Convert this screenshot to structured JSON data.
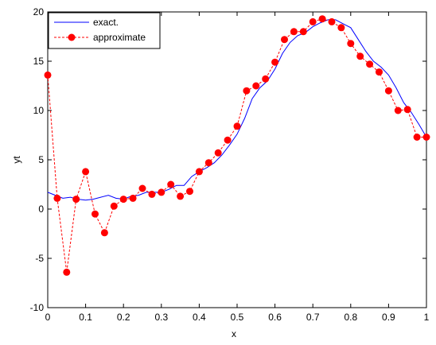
{
  "chart_data": {
    "type": "line",
    "xlabel": "x",
    "ylabel": "yt",
    "xlim": [
      0,
      1
    ],
    "ylim": [
      -10,
      20
    ],
    "xticks": [
      0,
      0.1,
      0.2,
      0.3,
      0.4,
      0.5,
      0.6,
      0.7,
      0.8,
      0.9,
      1
    ],
    "xtick_labels": [
      "0",
      "0.1",
      "0.2",
      "0.3",
      "0.4",
      "0.5",
      "0.6",
      "0.7",
      "0.8",
      "0.9",
      "1"
    ],
    "yticks": [
      -10,
      -5,
      0,
      5,
      10,
      15,
      20
    ],
    "ytick_labels": [
      "-10",
      "-5",
      "0",
      "5",
      "10",
      "15",
      "20"
    ],
    "grid": false,
    "legend_position": "top-left",
    "series": [
      {
        "name": "exact.",
        "style": "solid-line",
        "color": "#0000ff",
        "x": [
          0,
          0.02,
          0.04,
          0.06,
          0.08,
          0.1,
          0.12,
          0.14,
          0.16,
          0.18,
          0.2,
          0.22,
          0.24,
          0.26,
          0.28,
          0.3,
          0.32,
          0.34,
          0.36,
          0.38,
          0.4,
          0.42,
          0.44,
          0.46,
          0.48,
          0.5,
          0.52,
          0.54,
          0.56,
          0.58,
          0.6,
          0.62,
          0.64,
          0.66,
          0.68,
          0.7,
          0.72,
          0.74,
          0.76,
          0.78,
          0.8,
          0.82,
          0.84,
          0.86,
          0.88,
          0.9,
          0.92,
          0.94,
          0.96,
          0.98,
          1
        ],
        "y": [
          1.7,
          1.4,
          1.1,
          1.2,
          1.0,
          0.9,
          1.0,
          1.2,
          1.4,
          1.1,
          1.0,
          1.3,
          1.4,
          1.7,
          1.7,
          1.7,
          2.0,
          2.4,
          2.4,
          3.3,
          3.8,
          4.2,
          4.7,
          5.5,
          6.5,
          7.6,
          9.2,
          11.2,
          12.3,
          13.0,
          14.2,
          15.8,
          16.9,
          17.6,
          17.9,
          18.5,
          18.9,
          19.2,
          19.2,
          18.8,
          18.4,
          17.2,
          16.0,
          15.0,
          14.4,
          13.6,
          12.3,
          10.8,
          9.8,
          8.6,
          7.3
        ]
      },
      {
        "name": "approximate",
        "style": "dashed-line-with-markers",
        "color": "#ff0000",
        "x": [
          0,
          0.025,
          0.05,
          0.075,
          0.1,
          0.125,
          0.15,
          0.175,
          0.2,
          0.225,
          0.25,
          0.275,
          0.3,
          0.325,
          0.35,
          0.375,
          0.4,
          0.425,
          0.45,
          0.475,
          0.5,
          0.525,
          0.55,
          0.575,
          0.6,
          0.625,
          0.65,
          0.675,
          0.7,
          0.725,
          0.75,
          0.775,
          0.8,
          0.825,
          0.85,
          0.875,
          0.9,
          0.925,
          0.95,
          0.975,
          1
        ],
        "y": [
          13.6,
          1.1,
          -6.4,
          1.0,
          3.8,
          -0.5,
          -2.4,
          0.3,
          1.0,
          1.1,
          2.1,
          1.5,
          1.7,
          2.5,
          1.3,
          1.8,
          3.8,
          4.7,
          5.7,
          7.0,
          8.4,
          12.0,
          12.5,
          13.2,
          14.9,
          17.2,
          18.0,
          18.0,
          19.0,
          19.3,
          19.0,
          18.4,
          16.8,
          15.5,
          14.7,
          13.9,
          12.0,
          10.0,
          10.1,
          7.3,
          7.3
        ]
      }
    ]
  }
}
